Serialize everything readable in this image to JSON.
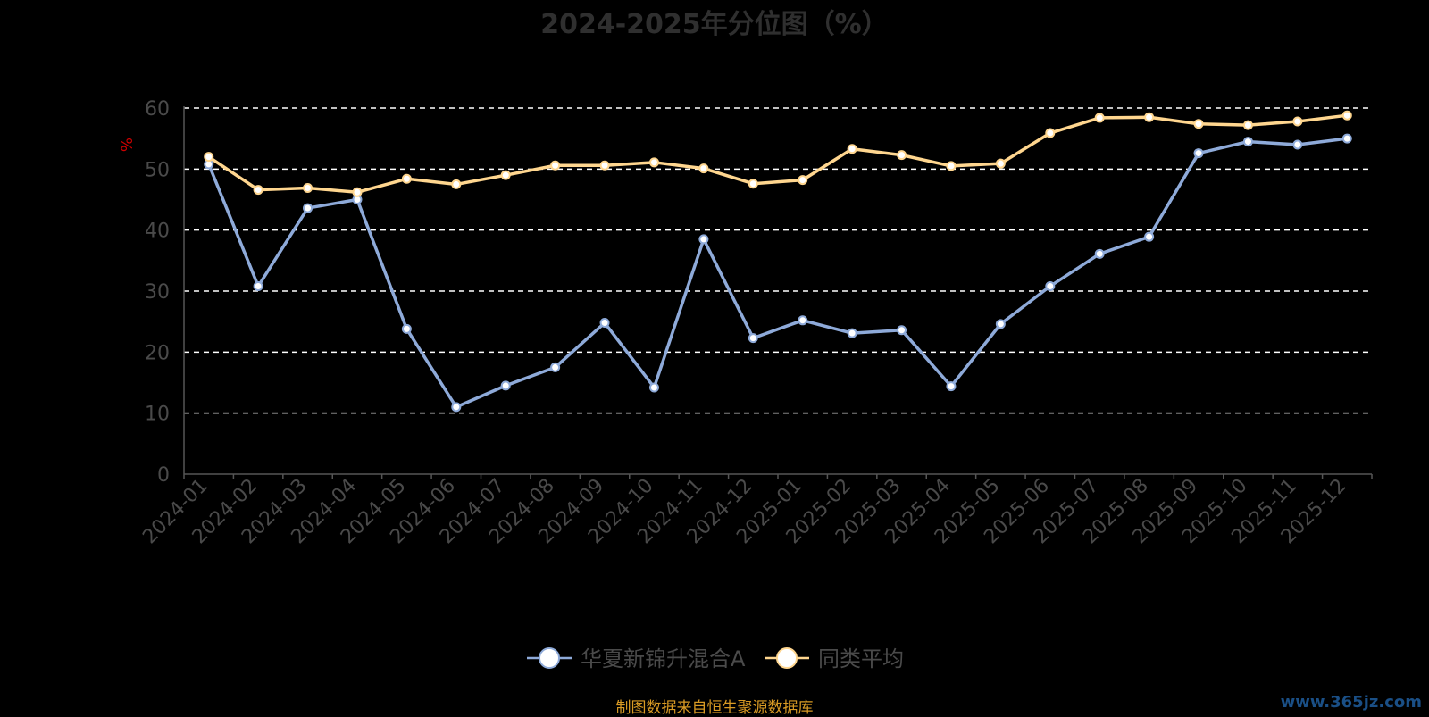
{
  "page": {
    "title": "2024-2025年分位图（%）",
    "source_note": "制图数据来自恒生聚源数据库",
    "watermark": "www.365jz.com"
  },
  "colors": {
    "background": "#000000",
    "title": "#2f2f2f",
    "axis_text": "#4a4a4a",
    "ylabel": "#cc0000",
    "grid": "#ffffff",
    "series_fund": "#8eaad9",
    "series_avg": "#ffd68f",
    "source_note": "#d89a24",
    "watermark": "#1a4f86"
  },
  "chart_data": {
    "type": "line",
    "title": "2024-2025年分位图（%）",
    "xlabel": "",
    "ylabel": "%",
    "ylim": [
      0,
      60
    ],
    "yticks": [
      0,
      10,
      20,
      30,
      40,
      50,
      60
    ],
    "grid": true,
    "legend_position": "bottom-center",
    "categories": [
      "2024-01",
      "2024-02",
      "2024-03",
      "2024-04",
      "2024-05",
      "2024-06",
      "2024-07",
      "2024-08",
      "2024-09",
      "2024-10",
      "2024-11",
      "2024-12",
      "2025-01",
      "2025-02",
      "2025-03",
      "2025-04",
      "2025-05",
      "2025-06",
      "2025-07",
      "2025-08",
      "2025-09",
      "2025-10",
      "2025-11",
      "2025-12"
    ],
    "series": [
      {
        "name": "华夏新锦升混合A",
        "color": "#8eaad9",
        "values": [
          50.8,
          30.8,
          43.6,
          45.0,
          23.8,
          11.0,
          14.5,
          17.5,
          24.8,
          14.2,
          38.5,
          22.3,
          25.2,
          23.1,
          23.6,
          14.4,
          24.6,
          30.8,
          36.1,
          38.9,
          52.6,
          54.5,
          54.0,
          55.0
        ]
      },
      {
        "name": "同类平均",
        "color": "#ffd68f",
        "values": [
          52.0,
          46.6,
          46.9,
          46.2,
          48.4,
          47.5,
          49.0,
          50.6,
          50.6,
          51.1,
          50.1,
          47.6,
          48.2,
          53.3,
          52.3,
          50.5,
          50.9,
          55.9,
          58.4,
          58.5,
          57.4,
          57.2,
          57.8,
          58.8
        ]
      }
    ]
  }
}
